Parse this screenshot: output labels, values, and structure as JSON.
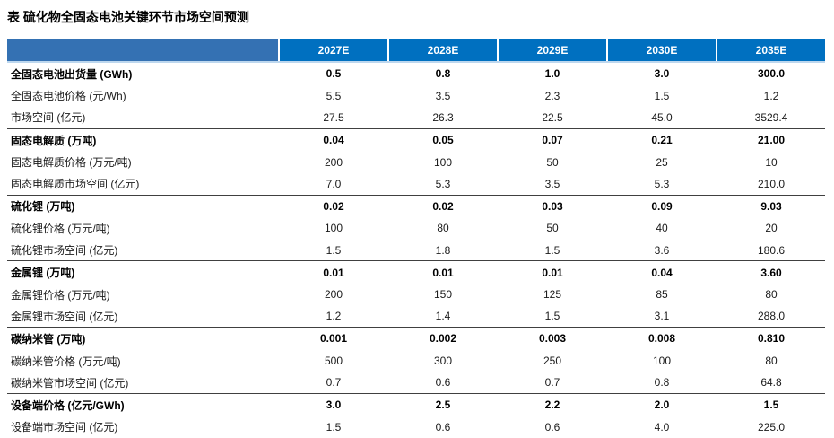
{
  "title": "表 硫化物全固态电池关键环节市场空间预测",
  "colors": {
    "header_label_bg": "#3471B3",
    "header_year_bg": "#0070C0",
    "header_underline": "#BDD7EE",
    "section_divider": "#404040"
  },
  "table": {
    "columns": [
      "2027E",
      "2028E",
      "2029E",
      "2030E",
      "2035E"
    ],
    "rows": [
      {
        "label": "全固态电池出货量 (GWh)",
        "bold": true,
        "divider_below": false,
        "values": [
          "0.5",
          "0.8",
          "1.0",
          "3.0",
          "300.0"
        ]
      },
      {
        "label": "全固态电池价格 (元/Wh)",
        "bold": false,
        "divider_below": false,
        "values": [
          "5.5",
          "3.5",
          "2.3",
          "1.5",
          "1.2"
        ]
      },
      {
        "label": "市场空间 (亿元)",
        "bold": false,
        "divider_below": true,
        "values": [
          "27.5",
          "26.3",
          "22.5",
          "45.0",
          "3529.4"
        ]
      },
      {
        "label": "固态电解质 (万吨)",
        "bold": true,
        "divider_below": false,
        "values": [
          "0.04",
          "0.05",
          "0.07",
          "0.21",
          "21.00"
        ]
      },
      {
        "label": "固态电解质价格 (万元/吨)",
        "bold": false,
        "divider_below": false,
        "values": [
          "200",
          "100",
          "50",
          "25",
          "10"
        ]
      },
      {
        "label": "固态电解质市场空间 (亿元)",
        "bold": false,
        "divider_below": true,
        "values": [
          "7.0",
          "5.3",
          "3.5",
          "5.3",
          "210.0"
        ]
      },
      {
        "label": "硫化锂 (万吨)",
        "bold": true,
        "divider_below": false,
        "values": [
          "0.02",
          "0.02",
          "0.03",
          "0.09",
          "9.03"
        ]
      },
      {
        "label": "硫化锂价格 (万元/吨)",
        "bold": false,
        "divider_below": false,
        "values": [
          "100",
          "80",
          "50",
          "40",
          "20"
        ]
      },
      {
        "label": "硫化锂市场空间 (亿元)",
        "bold": false,
        "divider_below": true,
        "values": [
          "1.5",
          "1.8",
          "1.5",
          "3.6",
          "180.6"
        ]
      },
      {
        "label": "金属锂 (万吨)",
        "bold": true,
        "divider_below": false,
        "values": [
          "0.01",
          "0.01",
          "0.01",
          "0.04",
          "3.60"
        ]
      },
      {
        "label": "金属锂价格 (万元/吨)",
        "bold": false,
        "divider_below": false,
        "values": [
          "200",
          "150",
          "125",
          "85",
          "80"
        ]
      },
      {
        "label": "金属锂市场空间 (亿元)",
        "bold": false,
        "divider_below": true,
        "values": [
          "1.2",
          "1.4",
          "1.5",
          "3.1",
          "288.0"
        ]
      },
      {
        "label": "碳纳米管 (万吨)",
        "bold": true,
        "divider_below": false,
        "values": [
          "0.001",
          "0.002",
          "0.003",
          "0.008",
          "0.810"
        ]
      },
      {
        "label": "碳纳米管价格 (万元/吨)",
        "bold": false,
        "divider_below": false,
        "values": [
          "500",
          "300",
          "250",
          "100",
          "80"
        ]
      },
      {
        "label": "碳纳米管市场空间 (亿元)",
        "bold": false,
        "divider_below": true,
        "values": [
          "0.7",
          "0.6",
          "0.7",
          "0.8",
          "64.8"
        ]
      },
      {
        "label": "设备端价格 (亿元/GWh)",
        "bold": true,
        "divider_below": false,
        "values": [
          "3.0",
          "2.5",
          "2.2",
          "2.0",
          "1.5"
        ]
      },
      {
        "label": "设备端市场空间 (亿元)",
        "bold": false,
        "divider_below": false,
        "values": [
          "1.5",
          "0.6",
          "0.6",
          "4.0",
          "225.0"
        ]
      }
    ]
  }
}
